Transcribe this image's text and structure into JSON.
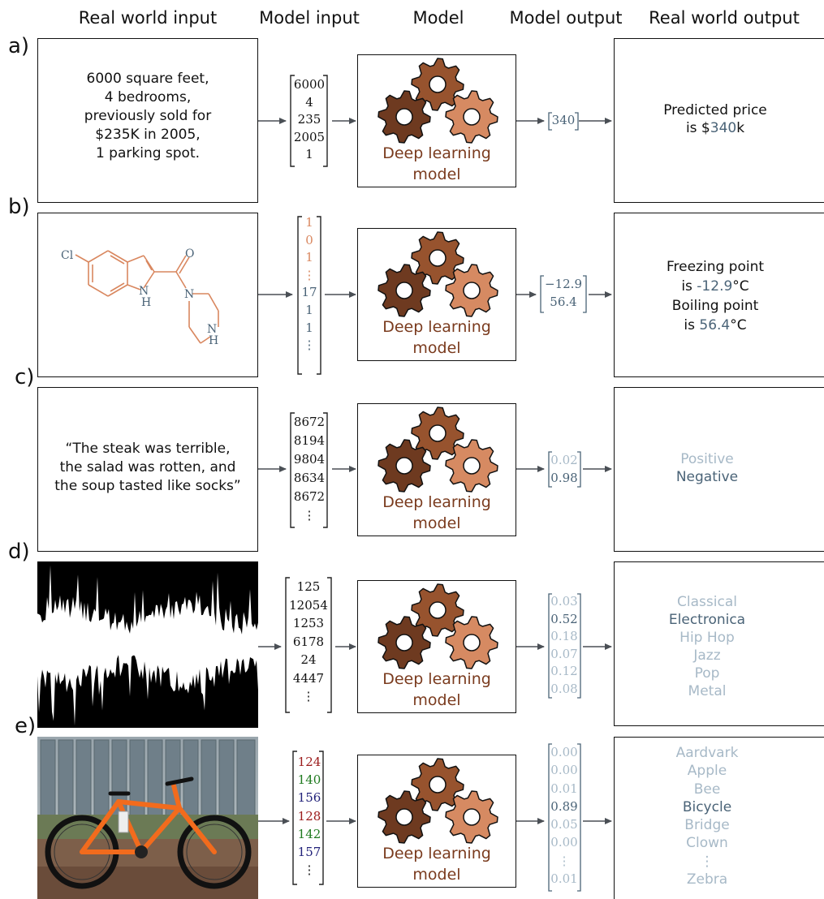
{
  "headers": {
    "real_world_input": "Real world input",
    "model_input": "Model input",
    "model": "Model",
    "model_output": "Model output",
    "real_world_output": "Real world output"
  },
  "model_label_line1": "Deep learning",
  "model_label_line2": "model",
  "colors": {
    "output_dark": "#4a6377",
    "output_light": "#a7b9c7",
    "model_label": "#7a3b1e",
    "gear_dark": "#6e3a20",
    "gear_mid": "#97532e",
    "gear_light": "#d68a62",
    "molecule": "#d9875f",
    "pixel_red": "#9b1b1b",
    "pixel_green": "#1f7a1f",
    "pixel_blue": "#22227a"
  },
  "rows": {
    "a": {
      "label": "a)",
      "input_lines": [
        "6000 square feet,",
        "4 bedrooms,",
        "previously sold for",
        "$235K in 2005,",
        "1 parking spot."
      ],
      "vector": [
        "6000",
        "4",
        "235",
        "2005",
        "1"
      ],
      "output_vector": [
        "340"
      ],
      "output_pre": "Predicted price",
      "output_is": "is $",
      "output_value": "340",
      "output_suffix": "k"
    },
    "b": {
      "label": "b)",
      "molecule_atoms": [
        "Cl",
        "O",
        "N",
        "H",
        "N",
        "N",
        "H"
      ],
      "vector": [
        "1",
        "0",
        "1",
        "⋮",
        "17",
        "1",
        "1",
        "⋮"
      ],
      "output_vector": [
        "−12.9",
        "56.4"
      ],
      "freezing_label": "Freezing point",
      "freezing_is": "is ",
      "freezing_value": "-12.9",
      "freezing_unit": "°C",
      "boiling_label": "Boiling point",
      "boiling_is": "is ",
      "boiling_value": "56.4",
      "boiling_unit": "°C"
    },
    "c": {
      "label": "c)",
      "input_lines": [
        "“The steak was terrible,",
        "the salad was rotten, and",
        "the soup tasted like socks”"
      ],
      "vector": [
        "8672",
        "8194",
        "9804",
        "8634",
        "8672",
        "⋮"
      ],
      "output_vector": [
        "0.02",
        "0.98"
      ],
      "classes": [
        "Positive",
        "Negative"
      ]
    },
    "d": {
      "label": "d)",
      "vector": [
        "125",
        "12054",
        "1253",
        "6178",
        "24",
        "4447",
        "⋮"
      ],
      "output_vector": [
        "0.03",
        "0.52",
        "0.18",
        "0.07",
        "0.12",
        "0.08"
      ],
      "classes": [
        "Classical",
        "Electronica",
        "Hip Hop",
        "Jazz",
        "Pop",
        "Metal"
      ]
    },
    "e": {
      "label": "e)",
      "vector": [
        "124",
        "140",
        "156",
        "128",
        "142",
        "157",
        "⋮"
      ],
      "output_vector": [
        "0.00",
        "0.00",
        "0.01",
        "0.89",
        "0.05",
        "0.00",
        "⋮",
        "0.01"
      ],
      "classes": [
        "Aardvark",
        "Apple",
        "Bee",
        "Bicycle",
        "Bridge",
        "Clown",
        "⋮",
        "Zebra"
      ]
    }
  }
}
